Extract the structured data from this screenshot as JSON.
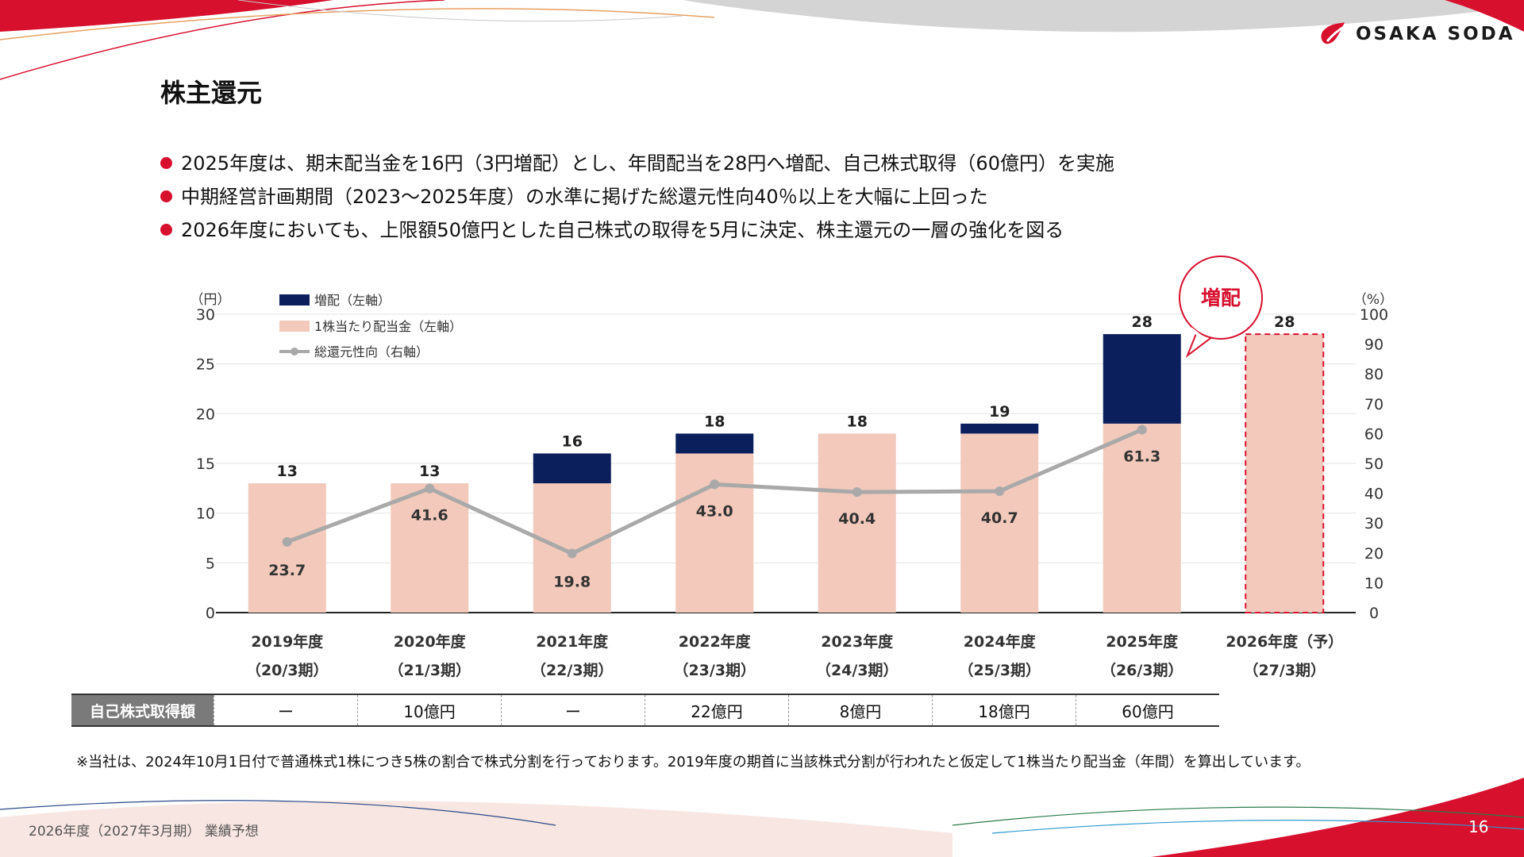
{
  "header": {
    "title": "株主還元",
    "logo_text": "OSAKA SODA"
  },
  "bullets": [
    "2025年度は、期末配当金を16円（3円増配）とし、年間配当を28円へ増配、自己株式取得（60億円）を実施",
    "中期経営計画期間（2023～2025年度）の水準に掲げた総還元性向40％以上を大幅に上回った",
    "2026年度においても、上限額50億円とした自己株式の取得を5月に決定、株主還元の一層の強化を図る"
  ],
  "chart_data": {
    "type": "bar",
    "categories": [
      "2019年度",
      "2020年度",
      "2021年度",
      "2022年度",
      "2023年度",
      "2024年度",
      "2025年度",
      "2026年度（予）"
    ],
    "subcategories": [
      "（20/3期）",
      "（21/3期）",
      "（22/3期）",
      "（23/3期）",
      "（24/3期）",
      "（25/3期）",
      "（26/3期）",
      "（27/3期）"
    ],
    "series": [
      {
        "name": "増配（左軸）",
        "type": "bar",
        "axis": "left",
        "values": [
          0,
          0,
          3,
          2,
          0,
          1,
          9,
          0
        ],
        "color": "#0b1f5c"
      },
      {
        "name": "1株当たり配当金（左軸）",
        "type": "bar",
        "axis": "left",
        "values": [
          13,
          13,
          13,
          16,
          18,
          18,
          19,
          28
        ],
        "color": "#f2c9bb"
      },
      {
        "name": "総還元性向（右軸）",
        "type": "line",
        "axis": "right",
        "values": [
          23.7,
          41.6,
          19.8,
          43.0,
          40.4,
          40.7,
          61.3,
          null
        ],
        "color": "#a9a9a9"
      }
    ],
    "totals": [
      13,
      13,
      16,
      18,
      18,
      19,
      28,
      28
    ],
    "line_labels": [
      "23.7",
      "41.6",
      "19.8",
      "43.0",
      "40.4",
      "40.7",
      "61.3"
    ],
    "forecast_index": 7,
    "left_axis": {
      "unit": "（円）",
      "min": 0,
      "max": 30,
      "ticks": [
        0,
        5,
        10,
        15,
        20,
        25,
        30
      ]
    },
    "right_axis": {
      "unit": "（%）",
      "min": 0,
      "max": 100,
      "ticks": [
        0,
        10,
        20,
        30,
        40,
        50,
        60,
        70,
        80,
        90,
        100
      ]
    },
    "callout": "増配",
    "grid": true,
    "legend_position": "top-left"
  },
  "stock_buyback": {
    "label": "自己株式取得額",
    "values": [
      "ー",
      "10億円",
      "ー",
      "22億円",
      "8億円",
      "18億円",
      "60億円"
    ]
  },
  "footnote": "※当社は、2024年10月1日付で普通株式1株につき5株の割合で株式分割を行っております。2019年度の期首に当該株式分割が行われたと仮定して1株当たり配当金（年間）を算出しています。",
  "footer": {
    "left": "2026年度（2027年3月期） 業績予想",
    "page": "16"
  },
  "colors": {
    "accent_red": "#d7102e",
    "navy": "#0b1f5c",
    "pink": "#f2c9bb",
    "line_gray": "#a9a9a9"
  }
}
